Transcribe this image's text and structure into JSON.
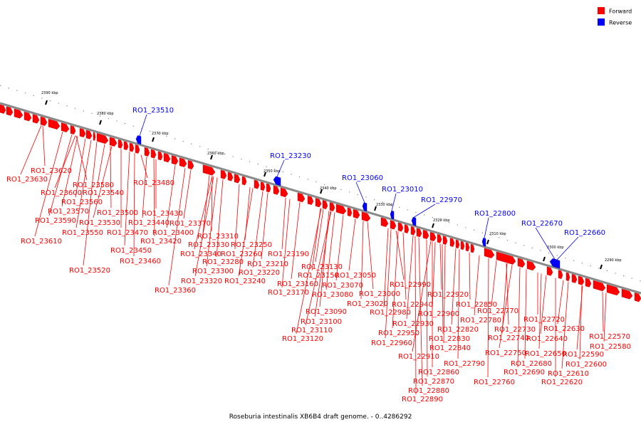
{
  "legend": [
    {
      "label": "Forward",
      "color": "#ff0000"
    },
    {
      "label": "Reverse",
      "color": "#0000ff"
    }
  ],
  "caption": "Roseburia intestinalis XB6B4 draft genome. - 0..4286292",
  "colors": {
    "forward": "#ff0000",
    "reverse": "#0000ff",
    "backbone": "#808080"
  },
  "scale_ticks": [
    "2390 kbp",
    "2380 kbp",
    "2370 kbp",
    "2360 kbp",
    "2350 kbp",
    "2340 kbp",
    "2330 kbp",
    "2320 kbp",
    "2310 kbp",
    "2300 kbp",
    "2290 kbp"
  ],
  "reverse_genes": [
    "RO1_23510",
    "RO1_23230",
    "RO1_23060",
    "RO1_23010",
    "RO1_22970",
    "RO1_22800",
    "RO1_22670",
    "RO1_22660"
  ],
  "forward_genes": [
    "RO1_23620",
    "RO1_23630",
    "RO1_23580",
    "RO1_23600",
    "RO1_23540",
    "RO1_23560",
    "RO1_23480",
    "RO1_23570",
    "RO1_23500",
    "RO1_23430",
    "RO1_23590",
    "RO1_23530",
    "RO1_23440",
    "RO1_23370",
    "RO1_23550",
    "RO1_23470",
    "RO1_23400",
    "RO1_23310",
    "RO1_23610",
    "RO1_23420",
    "RO1_23330",
    "RO1_23250",
    "RO1_23450",
    "RO1_23340",
    "RO1_23260",
    "RO1_23190",
    "RO1_23460",
    "RO1_23280",
    "RO1_23210",
    "RO1_23130",
    "RO1_23520",
    "RO1_23300",
    "RO1_23220",
    "RO1_23150",
    "RO1_23050",
    "RO1_23320",
    "RO1_23240",
    "RO1_23160",
    "RO1_23070",
    "RO1_22990",
    "RO1_23360",
    "RO1_23170",
    "RO1_23080",
    "RO1_23000",
    "RO1_22920",
    "RO1_23020",
    "RO1_22940",
    "RO1_22850",
    "RO1_23090",
    "RO1_22980",
    "RO1_22900",
    "RO1_22770",
    "RO1_23100",
    "RO1_22930",
    "RO1_22780",
    "RO1_22720",
    "RO1_23110",
    "RO1_22820",
    "RO1_22730",
    "RO1_22630",
    "RO1_22950",
    "RO1_22740",
    "RO1_22640",
    "RO1_22570",
    "RO1_23120",
    "RO1_22830",
    "RO1_22960",
    "RO1_22840",
    "RO1_22580",
    "RO1_22750",
    "RO1_22650",
    "RO1_22590",
    "RO1_22910",
    "RO1_22680",
    "RO1_22600",
    "RO1_22790",
    "RO1_22690",
    "RO1_22610",
    "RO1_22860",
    "RO1_22620",
    "RO1_22760",
    "RO1_22870",
    "RO1_22880",
    "RO1_22890"
  ]
}
